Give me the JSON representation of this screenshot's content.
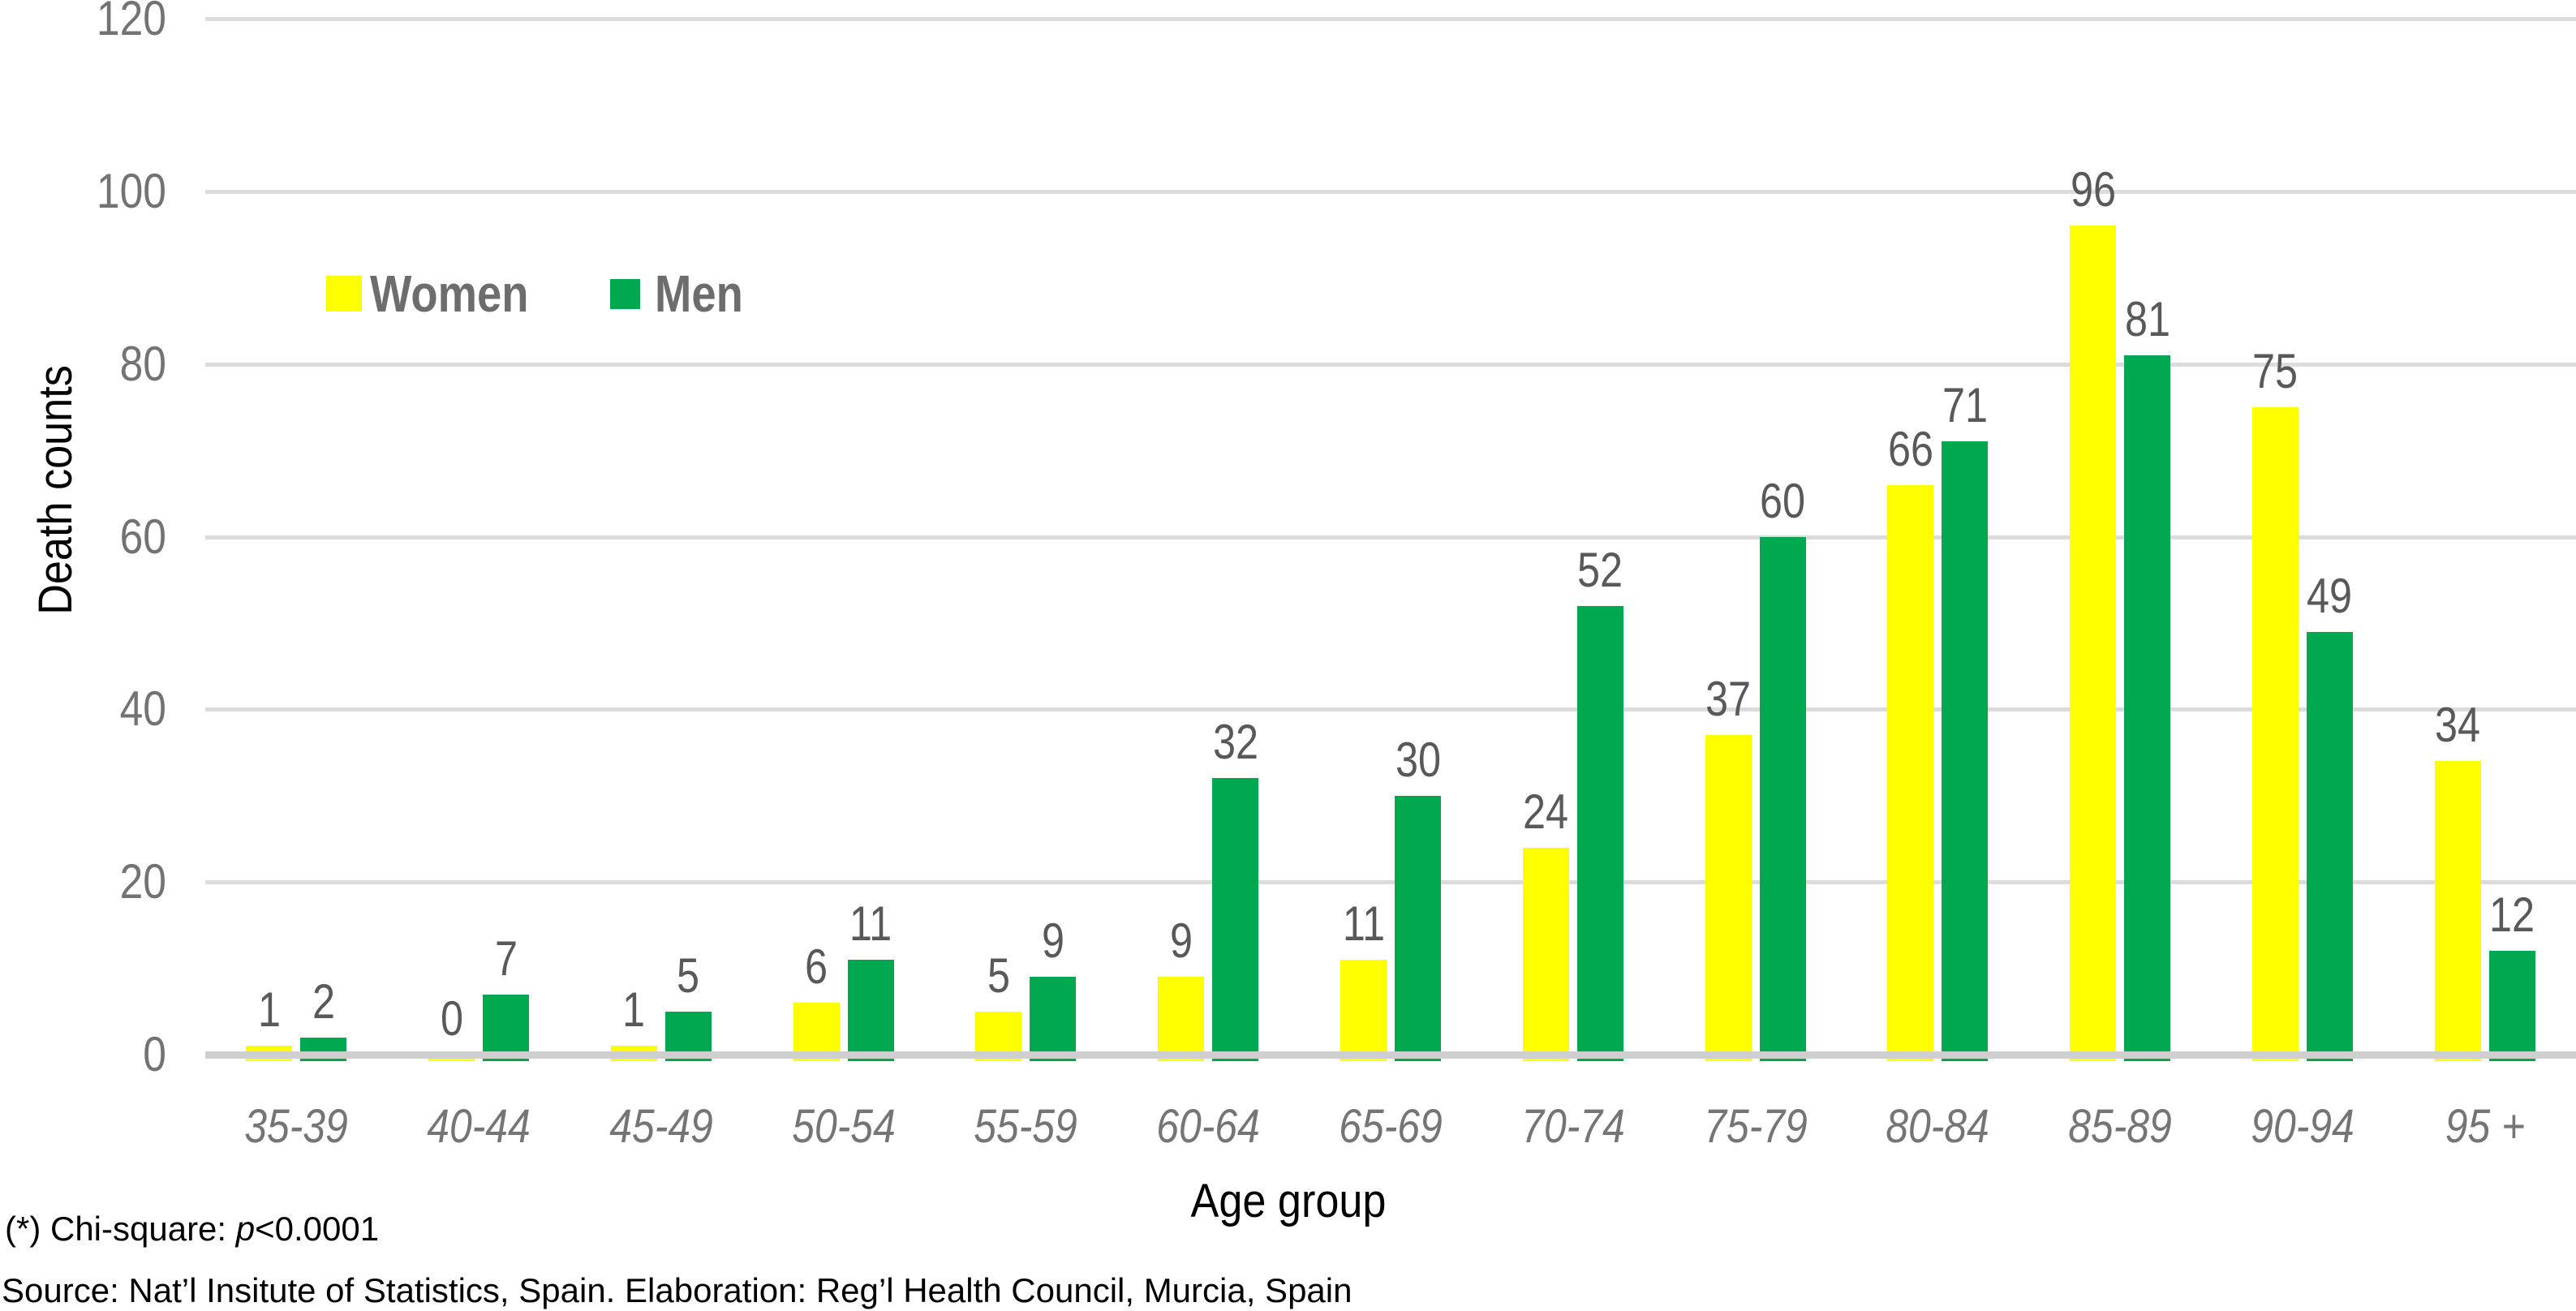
{
  "chart_data": {
    "type": "bar",
    "categories": [
      "35-39",
      "40-44",
      "45-49",
      "50-54",
      "55-59",
      "60-64",
      "65-69",
      "70-74",
      "75-79",
      "80-84",
      "85-89",
      "90-94",
      "95 +"
    ],
    "series": [
      {
        "name": "Women",
        "color": "#FFFF00",
        "values": [
          1,
          0,
          1,
          6,
          5,
          9,
          11,
          24,
          37,
          66,
          96,
          75,
          34
        ]
      },
      {
        "name": "Men",
        "color": "#00A94F",
        "values": [
          2,
          7,
          5,
          11,
          9,
          32,
          30,
          52,
          60,
          71,
          81,
          49,
          12
        ]
      }
    ],
    "title": "",
    "xlabel": "Age group",
    "ylabel": "Death counts",
    "ylim": [
      0,
      120
    ],
    "ytick_step": 20,
    "grid": true,
    "legend_position": "inside-top-left",
    "value_labels_shown": true
  },
  "footnotes": {
    "chi_prefix": "(*) Chi-square: ",
    "chi_p": "p",
    "chi_suffix": "<0.0001",
    "source": "Source: Nat’l Insitute of Statistics, Spain. Elaboration: Reg’l Health Council, Murcia, Spain"
  },
  "colors": {
    "women_bar": "#FFFF00",
    "men_bar": "#00A94F",
    "gridline": "#dcdcdc",
    "axis_baseline": "#cfcfcf",
    "value_label_text": "#595959",
    "tick_text": "#757575",
    "legend_text": "#6d6d6d",
    "axis_title_text": "#000000",
    "background": "#ffffff"
  }
}
